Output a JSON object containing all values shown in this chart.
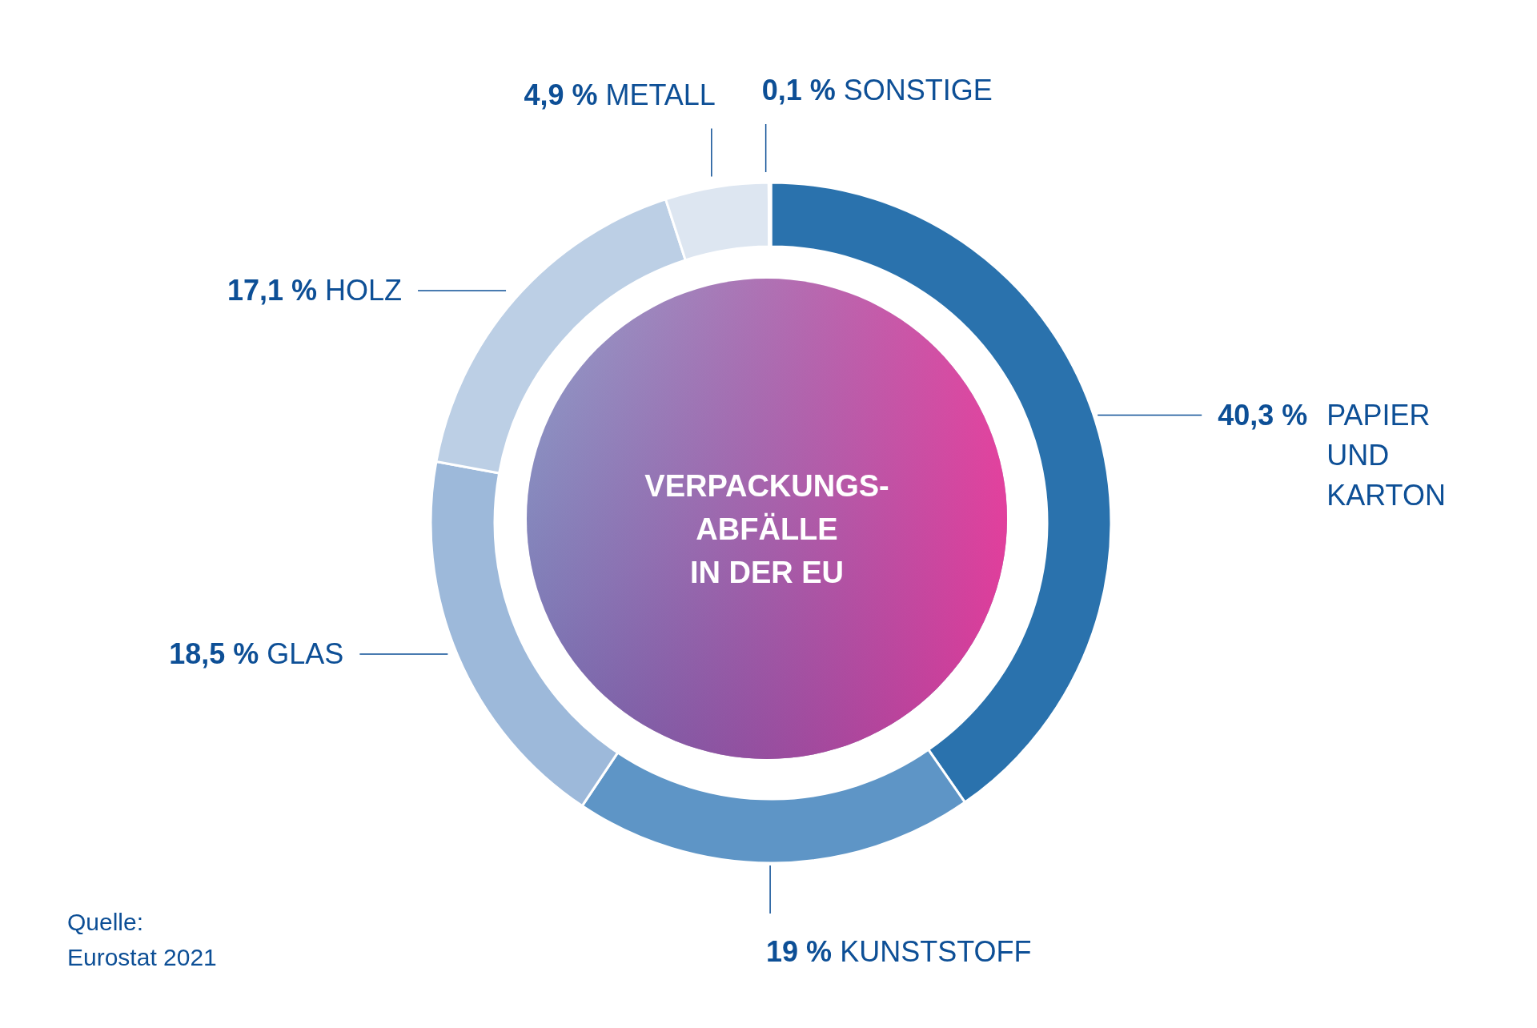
{
  "chart_data": {
    "type": "donut",
    "title": "VERPACKUNGS-\nABFÄLLE\nIN DER EU",
    "categories": [
      "PAPIER UND KARTON",
      "KUNSTSTOFF",
      "GLAS",
      "HOLZ",
      "METALL",
      "SONSTIGE"
    ],
    "values": [
      40.3,
      19,
      18.5,
      17.1,
      4.9,
      0.1
    ],
    "value_labels": [
      "40,3 %",
      "19 %",
      "18,5 %",
      "17,1 %",
      "4,9 %",
      "0,1 %"
    ],
    "colors": [
      "#2a72ad",
      "#5e95c6",
      "#9db9da",
      "#bccfe5",
      "#dde6f1",
      "#3d6fa8"
    ],
    "annotations": [
      "Quelle:\nEurostat 2021"
    ],
    "legend": false
  }
}
